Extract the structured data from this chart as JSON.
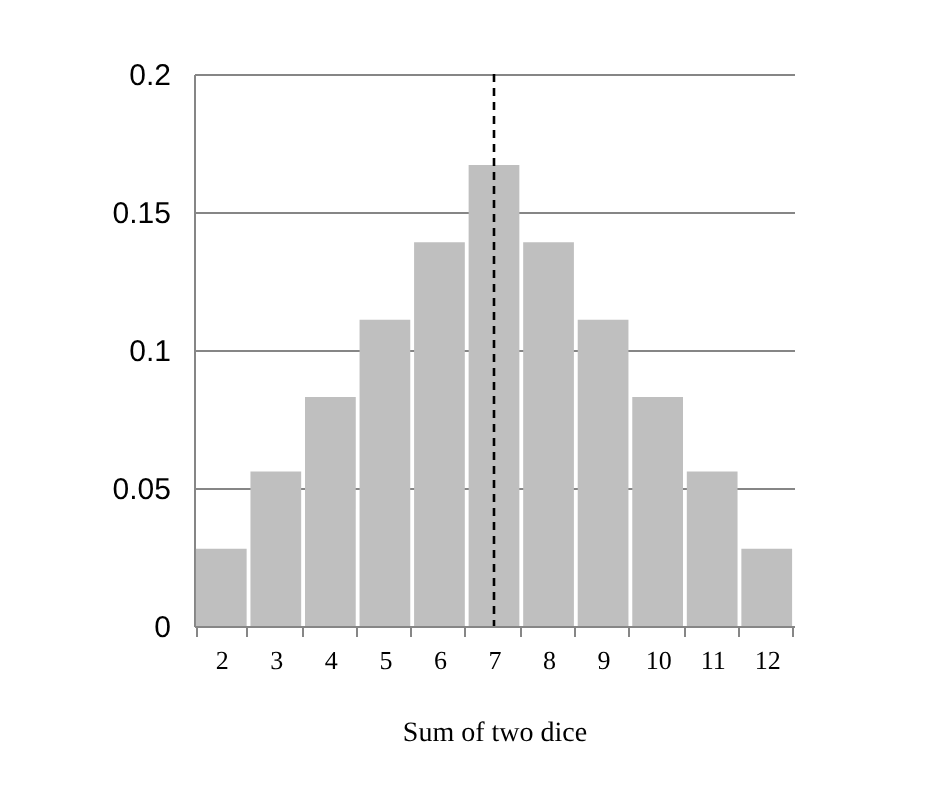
{
  "chart_data": {
    "type": "bar",
    "xlabel": "Sum of two dice",
    "categories": [
      "2",
      "3",
      "4",
      "5",
      "6",
      "7",
      "8",
      "9",
      "10",
      "11",
      "12"
    ],
    "values": [
      0.028,
      0.056,
      0.083,
      0.111,
      0.139,
      0.167,
      0.139,
      0.111,
      0.083,
      0.056,
      0.028
    ],
    "color": "#bfbfbf",
    "ylim": [
      0,
      0.2
    ],
    "yticks": [
      0,
      0.05,
      0.1,
      0.15,
      0.2
    ],
    "grid": "y",
    "ref_lines": [
      {
        "axis": "x",
        "value": "7",
        "line_style": "dashed",
        "color": "#000000"
      }
    ]
  }
}
